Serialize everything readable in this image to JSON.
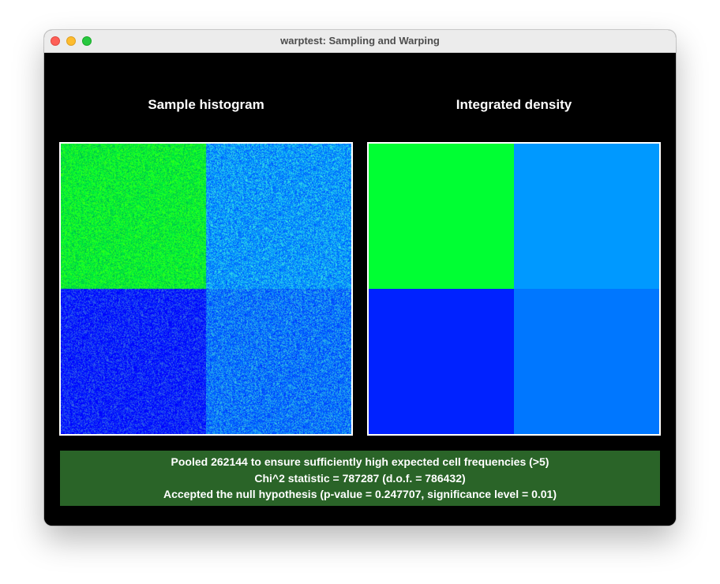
{
  "window": {
    "title": "warptest: Sampling and Warping"
  },
  "panels": {
    "left_title": "Sample histogram",
    "right_title": "Integrated density"
  },
  "colors": {
    "quadrant_top_left": "#00ff33",
    "quadrant_top_right": "#0099ff",
    "quadrant_bottom_left": "#0022ff",
    "quadrant_bottom_right": "#0077ff",
    "status_background": "#2a6428"
  },
  "status": {
    "line1": "Pooled 262144 to ensure sufficiently high expected cell frequencies (>5)",
    "line2": "Chi^2 statistic = 787287 (d.o.f. = 786432)",
    "line3": "Accepted the null hypothesis (p-value = 0.247707, significance level = 0.01)"
  }
}
